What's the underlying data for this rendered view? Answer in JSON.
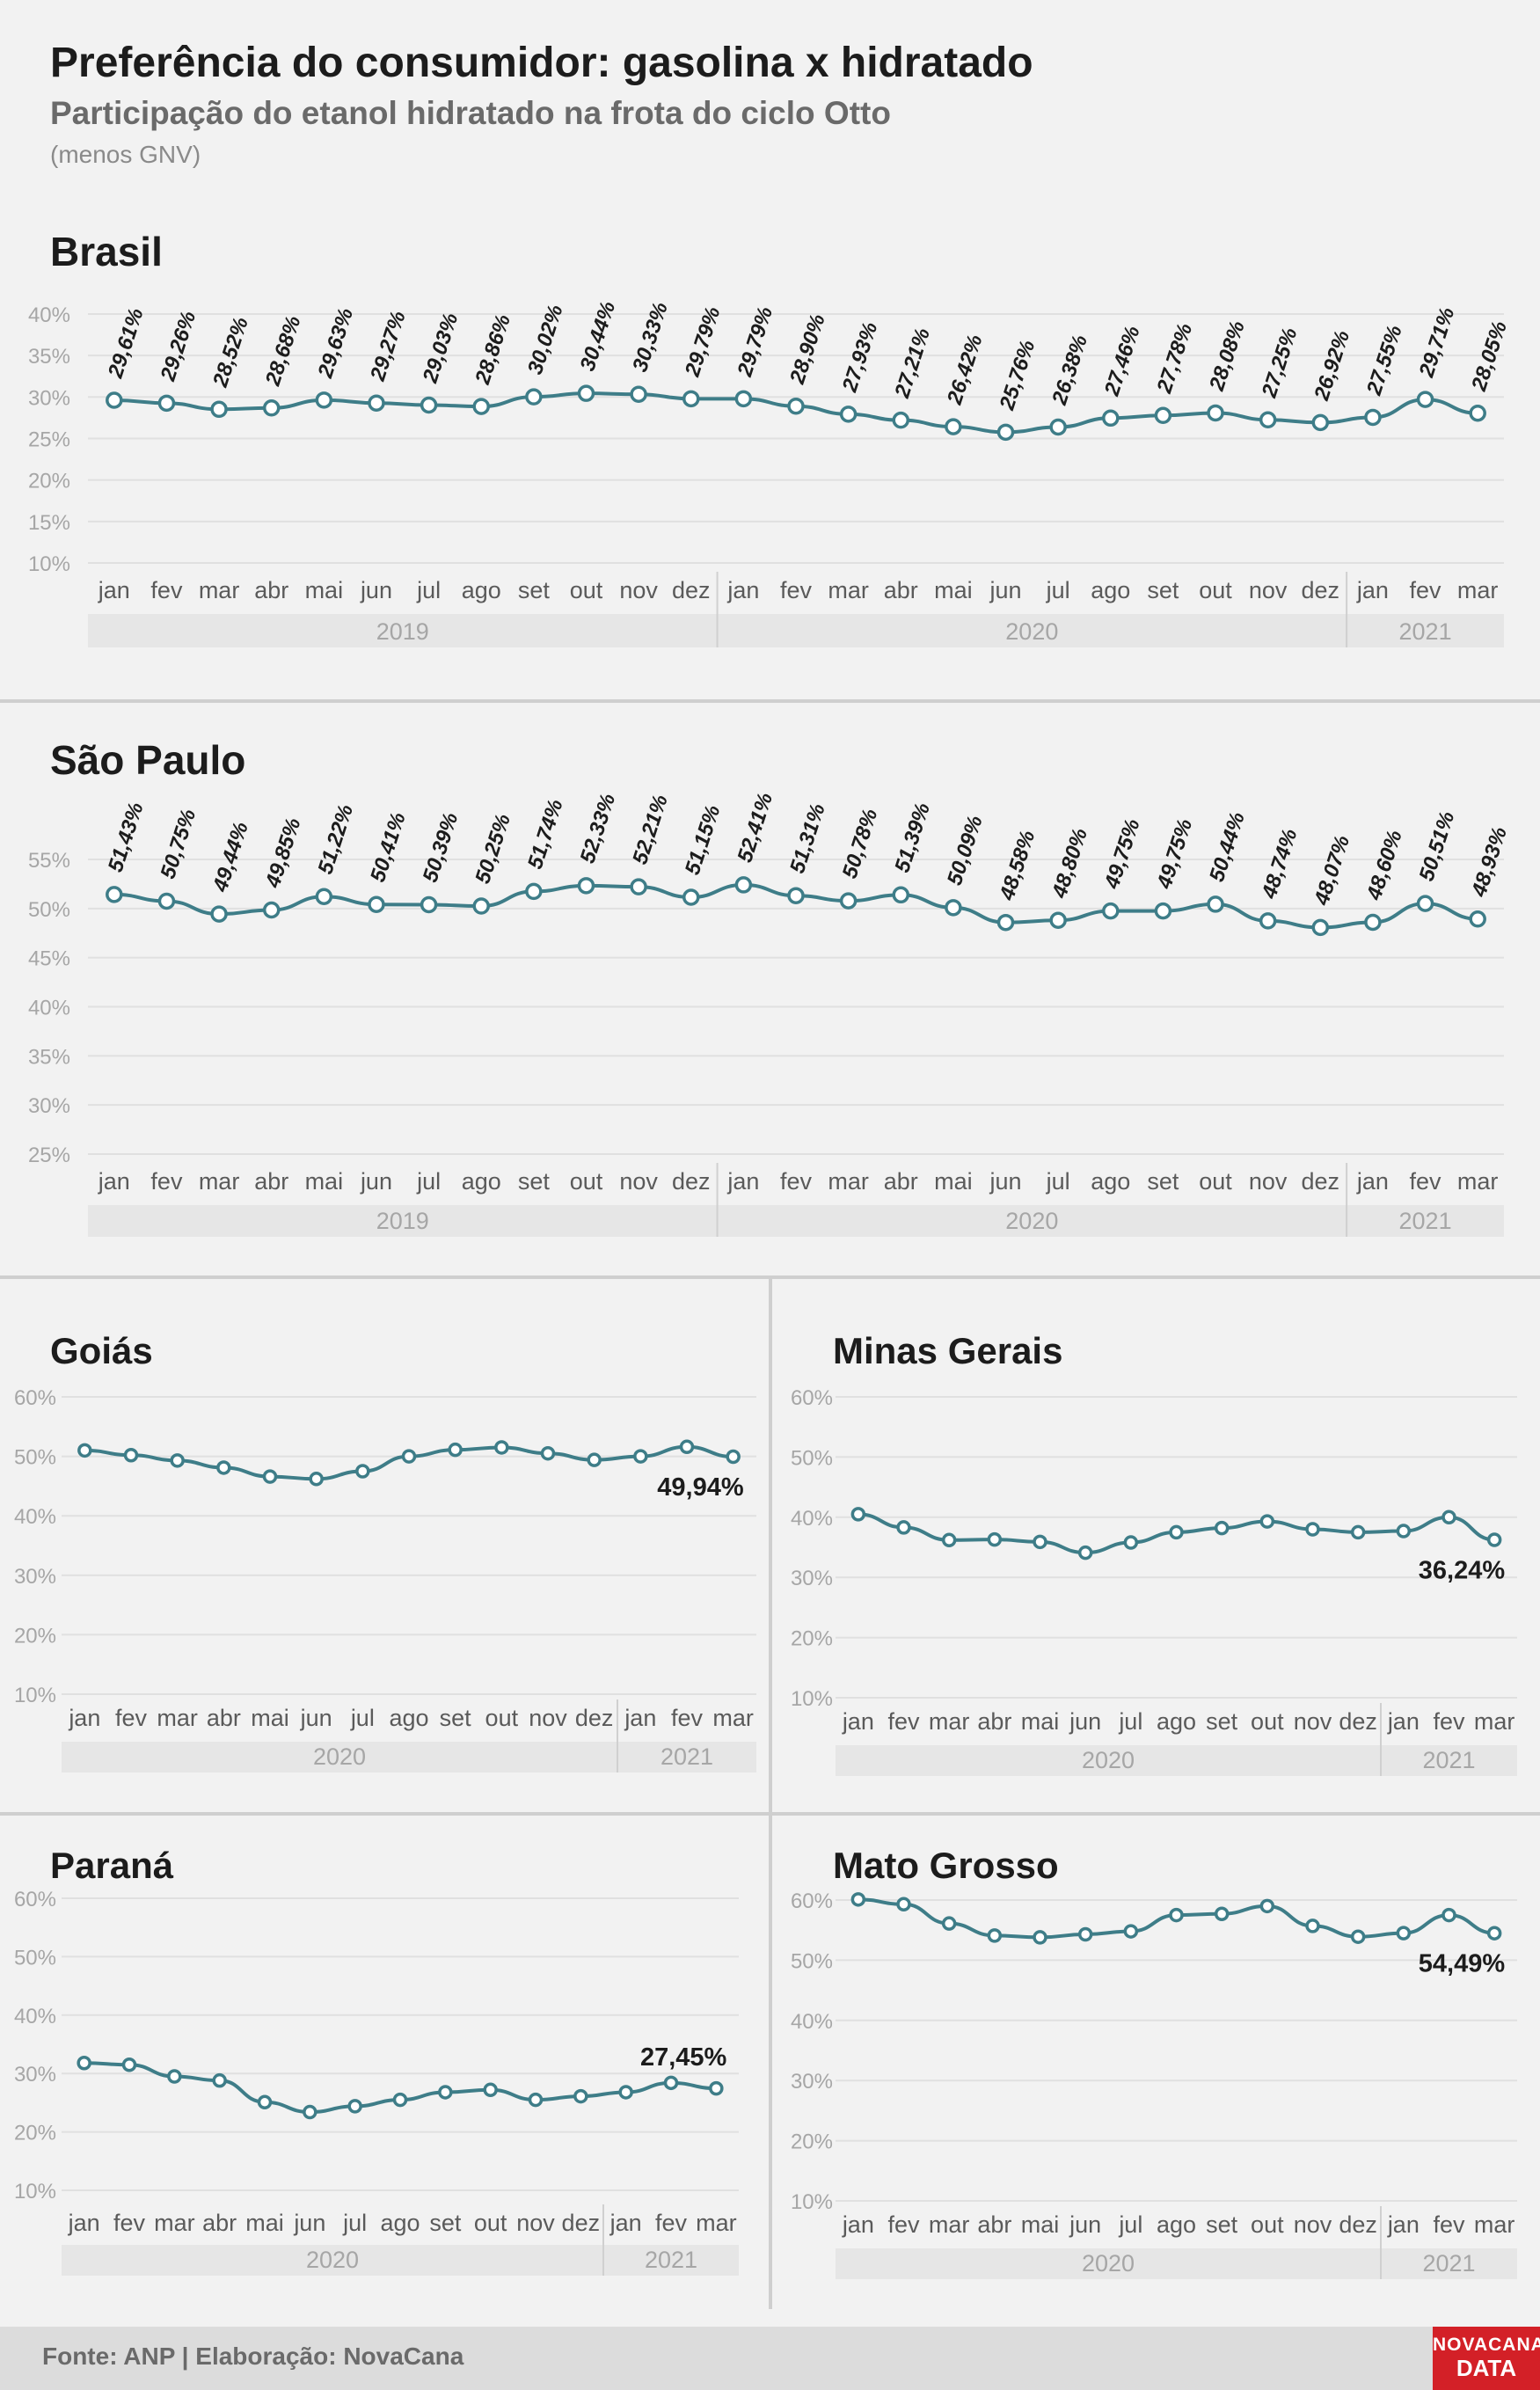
{
  "header": {
    "title": "Preferência do consumidor: gasolina x hidratado",
    "subtitle": "Participação do etanol hidratado na frota do ciclo Otto",
    "note": "(menos GNV)"
  },
  "footer": {
    "source": "Fonte: ANP | Elaboração: NovaCana",
    "logo_line1": "NOVACANA",
    "logo_line2": "DATA"
  },
  "colors": {
    "line": "#3e7d88",
    "marker_fill": "#ffffff",
    "grid": "#e0e0e0",
    "axis_text": "#a6a6a6",
    "band": "#e6e6e6",
    "panel_title": "#1c1c1c",
    "separator": "#cfcfcf"
  },
  "chart_data": [
    {
      "type": "line",
      "title": "Brasil",
      "categories": [
        "jan",
        "fev",
        "mar",
        "abr",
        "mai",
        "jun",
        "jul",
        "ago",
        "set",
        "out",
        "nov",
        "dez",
        "jan",
        "fev",
        "mar",
        "abr",
        "mai",
        "jun",
        "jul",
        "ago",
        "set",
        "out",
        "nov",
        "dez",
        "jan",
        "fev",
        "mar"
      ],
      "years": [
        {
          "label": "2019",
          "count": 12
        },
        {
          "label": "2020",
          "count": 12
        },
        {
          "label": "2021",
          "count": 3
        }
      ],
      "values": [
        29.61,
        29.26,
        28.52,
        28.68,
        29.63,
        29.27,
        29.03,
        28.86,
        30.02,
        30.44,
        30.33,
        29.79,
        29.79,
        28.9,
        27.93,
        27.21,
        26.42,
        25.76,
        26.38,
        27.46,
        27.78,
        28.08,
        27.25,
        26.92,
        27.55,
        29.71,
        28.05
      ],
      "data_labels": [
        "29,61%",
        "29,26%",
        "28,52%",
        "28,68%",
        "29,63%",
        "29,27%",
        "29,03%",
        "28,86%",
        "30,02%",
        "30,44%",
        "30,33%",
        "29,79%",
        "29,79%",
        "28,90%",
        "27,93%",
        "27,21%",
        "26,42%",
        "25,76%",
        "26,38%",
        "27,46%",
        "27,78%",
        "28,08%",
        "27,25%",
        "26,92%",
        "27,55%",
        "29,71%",
        "28,05%"
      ],
      "yticks": [
        "10%",
        "15%",
        "20%",
        "25%",
        "30%",
        "35%",
        "40%"
      ],
      "ylim": [
        10,
        40
      ],
      "grid": true,
      "label_mode": "all"
    },
    {
      "type": "line",
      "title": "São Paulo",
      "categories": [
        "jan",
        "fev",
        "mar",
        "abr",
        "mai",
        "jun",
        "jul",
        "ago",
        "set",
        "out",
        "nov",
        "dez",
        "jan",
        "fev",
        "mar",
        "abr",
        "mai",
        "jun",
        "jul",
        "ago",
        "set",
        "out",
        "nov",
        "dez",
        "jan",
        "fev",
        "mar"
      ],
      "years": [
        {
          "label": "2019",
          "count": 12
        },
        {
          "label": "2020",
          "count": 12
        },
        {
          "label": "2021",
          "count": 3
        }
      ],
      "values": [
        51.43,
        50.75,
        49.44,
        49.85,
        51.22,
        50.41,
        50.39,
        50.25,
        51.74,
        52.33,
        52.21,
        51.15,
        52.41,
        51.31,
        50.78,
        51.39,
        50.09,
        48.58,
        48.8,
        49.75,
        49.75,
        50.44,
        48.74,
        48.07,
        48.6,
        50.51,
        48.93
      ],
      "data_labels": [
        "51,43%",
        "50,75%",
        "49,44%",
        "49,85%",
        "51,22%",
        "50,41%",
        "50,39%",
        "50,25%",
        "51,74%",
        "52,33%",
        "52,21%",
        "51,15%",
        "52,41%",
        "51,31%",
        "50,78%",
        "51,39%",
        "50,09%",
        "48,58%",
        "48,80%",
        "49,75%",
        "49,75%",
        "50,44%",
        "48,74%",
        "48,07%",
        "48,60%",
        "50,51%",
        "48,93%"
      ],
      "yticks": [
        "25%",
        "30%",
        "35%",
        "40%",
        "45%",
        "50%",
        "55%"
      ],
      "ylim": [
        25,
        55
      ],
      "grid": true,
      "label_mode": "all"
    },
    {
      "type": "line",
      "title": "Goiás",
      "categories": [
        "jan",
        "fev",
        "mar",
        "abr",
        "mai",
        "jun",
        "jul",
        "ago",
        "set",
        "out",
        "nov",
        "dez",
        "jan",
        "fev",
        "mar"
      ],
      "years": [
        {
          "label": "2020",
          "count": 12
        },
        {
          "label": "2021",
          "count": 3
        }
      ],
      "values": [
        51.0,
        50.2,
        49.3,
        48.1,
        46.6,
        46.2,
        47.5,
        50.0,
        51.1,
        51.5,
        50.5,
        49.4,
        50.0,
        51.6,
        49.94
      ],
      "data_labels": [
        "",
        "",
        "",
        "",
        "",
        "",
        "",
        "",
        "",
        "",
        "",
        "",
        "",
        "",
        "49,94%"
      ],
      "yticks": [
        "10%",
        "20%",
        "30%",
        "40%",
        "50%",
        "60%"
      ],
      "ylim": [
        10,
        60
      ],
      "grid": true,
      "label_mode": "last"
    },
    {
      "type": "line",
      "title": "Minas Gerais",
      "categories": [
        "jan",
        "fev",
        "mar",
        "abr",
        "mai",
        "jun",
        "jul",
        "ago",
        "set",
        "out",
        "nov",
        "dez",
        "jan",
        "fev",
        "mar"
      ],
      "years": [
        {
          "label": "2020",
          "count": 12
        },
        {
          "label": "2021",
          "count": 3
        }
      ],
      "values": [
        40.5,
        38.3,
        36.2,
        36.3,
        35.9,
        34.1,
        35.8,
        37.5,
        38.2,
        39.3,
        38.0,
        37.5,
        37.7,
        40.0,
        36.24
      ],
      "data_labels": [
        "",
        "",
        "",
        "",
        "",
        "",
        "",
        "",
        "",
        "",
        "",
        "",
        "",
        "",
        "36,24%"
      ],
      "yticks": [
        "10%",
        "20%",
        "30%",
        "40%",
        "50%",
        "60%"
      ],
      "ylim": [
        10,
        60
      ],
      "grid": true,
      "label_mode": "last"
    },
    {
      "type": "line",
      "title": "Paraná",
      "categories": [
        "jan",
        "fev",
        "mar",
        "abr",
        "mai",
        "jun",
        "jul",
        "ago",
        "set",
        "out",
        "nov",
        "dez",
        "jan",
        "fev",
        "mar"
      ],
      "years": [
        {
          "label": "2020",
          "count": 12
        },
        {
          "label": "2021",
          "count": 3
        }
      ],
      "values": [
        31.8,
        31.5,
        29.5,
        28.8,
        25.1,
        23.4,
        24.4,
        25.5,
        26.8,
        27.2,
        25.5,
        26.1,
        26.8,
        28.4,
        27.45
      ],
      "data_labels": [
        "",
        "",
        "",
        "",
        "",
        "",
        "",
        "",
        "",
        "",
        "",
        "",
        "",
        "",
        "27,45%"
      ],
      "yticks": [
        "10%",
        "20%",
        "30%",
        "40%",
        "50%",
        "60%"
      ],
      "ylim": [
        10,
        60
      ],
      "grid": true,
      "label_mode": "last"
    },
    {
      "type": "line",
      "title": "Mato Grosso",
      "categories": [
        "jan",
        "fev",
        "mar",
        "abr",
        "mai",
        "jun",
        "jul",
        "ago",
        "set",
        "out",
        "nov",
        "dez",
        "jan",
        "fev",
        "mar"
      ],
      "years": [
        {
          "label": "2020",
          "count": 12
        },
        {
          "label": "2021",
          "count": 3
        }
      ],
      "values": [
        60.1,
        59.3,
        56.1,
        54.1,
        53.8,
        54.3,
        54.8,
        57.5,
        57.7,
        59.0,
        55.7,
        53.9,
        54.5,
        57.5,
        54.49
      ],
      "data_labels": [
        "",
        "",
        "",
        "",
        "",
        "",
        "",
        "",
        "",
        "",
        "",
        "",
        "",
        "",
        "54,49%"
      ],
      "yticks": [
        "10%",
        "20%",
        "30%",
        "40%",
        "50%",
        "60%"
      ],
      "ylim": [
        10,
        60
      ],
      "grid": true,
      "label_mode": "last"
    }
  ]
}
